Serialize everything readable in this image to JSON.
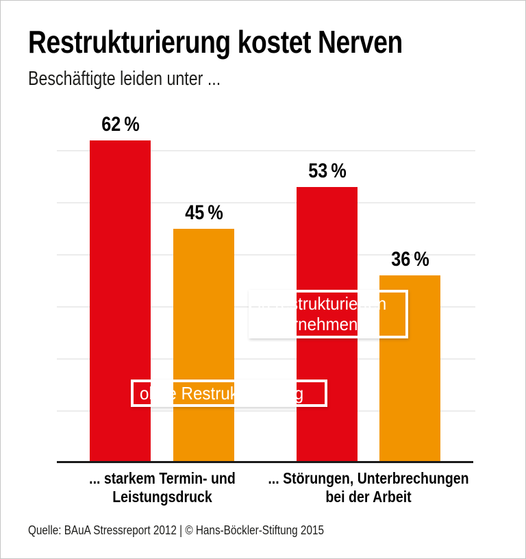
{
  "header": {
    "title": "Restrukturierung kostet Nerven",
    "subtitle": "Beschäftigte leiden unter ..."
  },
  "chart_data": {
    "type": "bar",
    "title": "Restrukturierung kostet Nerven",
    "subtitle": "Beschäftigte leiden unter ...",
    "categories": [
      "... starkem Termin- und Leistungsdruck",
      "... Störungen, Unterbrechungen bei der Arbeit"
    ],
    "series": [
      {
        "name": "in restrukturierten Unternehmen",
        "color": "#e30613",
        "values": [
          62,
          53
        ],
        "labels": [
          "62 %",
          "53 %"
        ]
      },
      {
        "name": "ohne Restrukturierung",
        "color": "#f29400",
        "values": [
          45,
          36
        ],
        "labels": [
          "45 %",
          "36 %"
        ]
      }
    ],
    "unit": "%",
    "ylim": [
      0,
      65
    ],
    "grid": true,
    "gridlines_percent": [
      10,
      20,
      30,
      40,
      50,
      60
    ],
    "legend_position": "overlay-on-bars",
    "legend_overlays": [
      {
        "series": "in restrukturierten Unternehmen",
        "lines": [
          "in restrukturierten",
          "Unternehmen"
        ],
        "color": "#e30613"
      },
      {
        "series": "ohne Restrukturierung",
        "lines": [
          "ohne Restrukturierung"
        ],
        "color": "#f29400"
      }
    ],
    "category_labels": [
      {
        "lines": [
          "... starkem Termin- und",
          "Leistungsdruck"
        ]
      },
      {
        "lines": [
          "... Störungen, Unterbrechungen",
          "bei der Arbeit"
        ]
      }
    ]
  },
  "footer": {
    "source": "Quelle: BAuA Stressreport 2012 | © Hans-Böckler-Stiftung 2015"
  },
  "colors": {
    "red": "#e30613",
    "orange": "#f29400",
    "gridline": "#ececec",
    "axis": "#1a1a1a",
    "text": "#000000",
    "background": "#ffffff",
    "frame_border": "#c4c4c4"
  }
}
